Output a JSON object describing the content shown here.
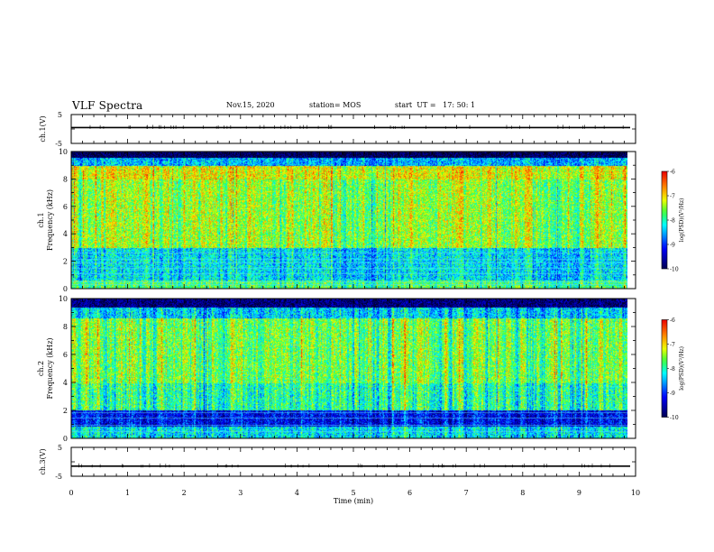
{
  "header": {
    "title": "VLF Spectra",
    "date": "Nov.15, 2020",
    "station": "station= MOS",
    "start": "start  UT =   17: 50: 1"
  },
  "colors": {
    "spectrum": [
      "#00006a",
      "#0000ff",
      "#00a0ff",
      "#00ffff",
      "#40ff40",
      "#ffff00",
      "#ff8000",
      "#ff0000"
    ]
  },
  "chart_data": [
    {
      "type": "line",
      "name": "ch1-waveform",
      "ylabel": "ch.1(V)",
      "ylim": [
        -5,
        5
      ],
      "yticks": [
        "5",
        "-5"
      ],
      "x": [
        0,
        10
      ],
      "values": [
        0.5,
        0.5
      ]
    },
    {
      "type": "heatmap",
      "name": "ch1-spectrogram",
      "ylabel_1": "ch.1",
      "ylabel_2": "Frequency  (kHz)",
      "ylim": [
        0,
        10
      ],
      "yticks": [
        "0",
        "2",
        "4",
        "6",
        "8",
        "10"
      ],
      "xlim": [
        0,
        10
      ],
      "data_end_min": 9.85,
      "colorbar": {
        "label": "log(PSD)(V²/Hz)",
        "range": [
          -10,
          -6
        ],
        "ticks": [
          "-10",
          "-9",
          "-8",
          "-7",
          "-6"
        ]
      }
    },
    {
      "type": "heatmap",
      "name": "ch2-spectrogram",
      "ylabel_1": "ch.2",
      "ylabel_2": "Frequency  (kHz)",
      "ylim": [
        0,
        10
      ],
      "yticks": [
        "0",
        "2",
        "4",
        "6",
        "8",
        "10"
      ],
      "xlim": [
        0,
        10
      ],
      "data_end_min": 9.85,
      "colorbar": {
        "label": "log(PSD)(V²/Hz)",
        "range": [
          -10,
          -6
        ],
        "ticks": [
          "-10",
          "-9",
          "-8",
          "-7",
          "-6"
        ]
      }
    },
    {
      "type": "line",
      "name": "ch3-waveform",
      "ylabel": "ch.3(V)",
      "ylim": [
        -5,
        5
      ],
      "yticks": [
        "5",
        "-5"
      ],
      "x": [
        0,
        10
      ],
      "values": [
        -1.5,
        -1.5
      ],
      "xlabel": "Time  (min)",
      "xticks": [
        "0",
        "1",
        "2",
        "3",
        "4",
        "5",
        "6",
        "7",
        "8",
        "9",
        "10"
      ]
    }
  ]
}
